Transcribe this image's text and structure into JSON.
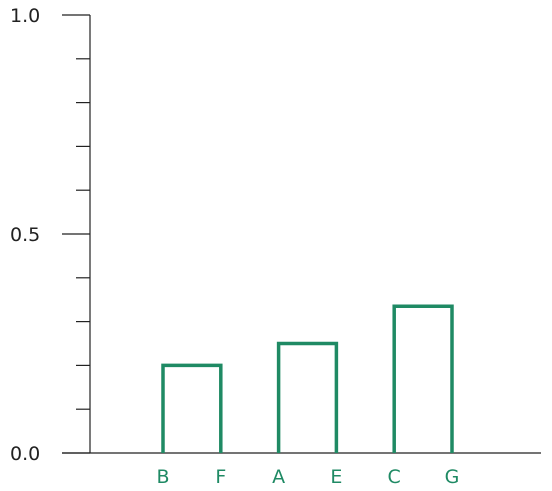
{
  "chart_data": {
    "type": "dendrogram",
    "title": "",
    "xlabel": "",
    "ylabel": "",
    "ylim": [
      0.0,
      1.0
    ],
    "y_tick_labels": [
      "0.0",
      "0.5",
      "1.0"
    ],
    "y_tick_values": [
      0.0,
      0.5,
      1.0
    ],
    "y_minor_ticks": [
      0.1,
      0.2,
      0.3,
      0.4,
      0.6,
      0.7,
      0.8,
      0.9
    ],
    "leaves": [
      "B",
      "F",
      "A",
      "E",
      "C",
      "G"
    ],
    "links": [
      {
        "left": "B",
        "right": "F",
        "height": 0.2
      },
      {
        "left": "A",
        "right": "E",
        "height": 0.25
      },
      {
        "left": "C",
        "right": "G",
        "height": 0.335
      }
    ],
    "link_color": "#1f8a64",
    "axis_color": "#222222",
    "grid": false
  }
}
